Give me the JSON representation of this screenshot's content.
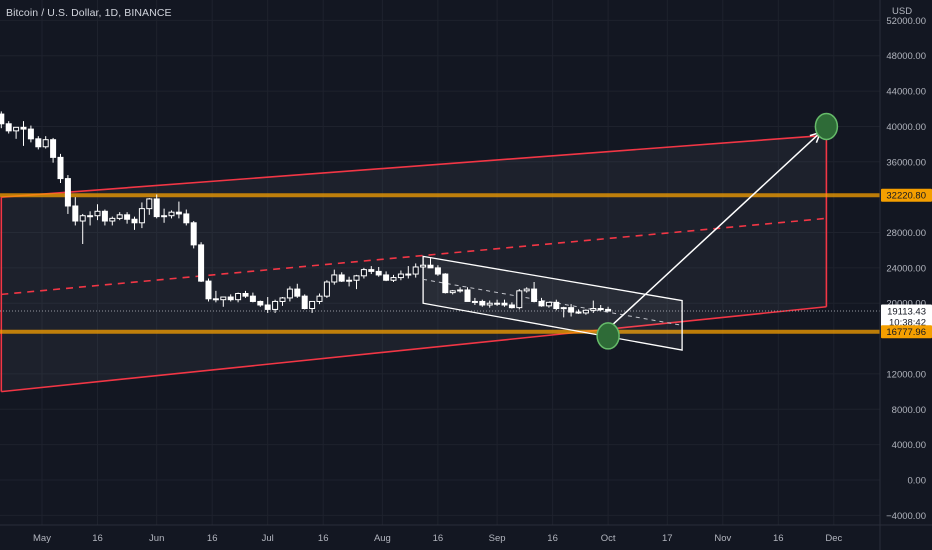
{
  "header": {
    "symbol_title": "Bitcoin / U.S. Dollar, 1D, BINANCE",
    "currency": "USD"
  },
  "chart_data": {
    "type": "line",
    "title": "Bitcoin / U.S. Dollar, 1D, BINANCE",
    "xlabel": "",
    "ylabel": "",
    "ylim": [
      -4000,
      52000
    ],
    "grid": true,
    "y_tick_labels": [
      "52000.00",
      "48000.00",
      "44000.00",
      "40000.00",
      "36000.00",
      "28000.00",
      "24000.00",
      "20000.00",
      "12000.00",
      "8000.00",
      "4000.00",
      "0.00",
      "−4000.00"
    ],
    "y_tick_values": [
      52000,
      48000,
      44000,
      40000,
      36000,
      28000,
      24000,
      20000,
      12000,
      8000,
      4000,
      0,
      -4000
    ],
    "x_tick_labels": [
      "May",
      "16",
      "Jun",
      "16",
      "Jul",
      "16",
      "Aug",
      "16",
      "Sep",
      "16",
      "Oct",
      "17",
      "Nov",
      "16",
      "Dec"
    ],
    "x_tick_dates": [
      "2022-05-01",
      "2022-05-16",
      "2022-06-01",
      "2022-06-16",
      "2022-07-01",
      "2022-07-16",
      "2022-08-01",
      "2022-08-16",
      "2022-09-01",
      "2022-09-16",
      "2022-10-01",
      "2022-10-17",
      "2022-11-01",
      "2022-11-16",
      "2022-12-01"
    ],
    "series": [
      {
        "type": "candlestick",
        "dates": [
          "2022-04-04",
          "2022-04-06",
          "2022-04-08",
          "2022-04-10",
          "2022-04-12",
          "2022-04-14",
          "2022-04-16",
          "2022-04-18",
          "2022-04-20",
          "2022-04-22",
          "2022-04-24",
          "2022-04-26",
          "2022-04-28",
          "2022-04-30",
          "2022-05-02",
          "2022-05-04",
          "2022-05-06",
          "2022-05-08",
          "2022-05-10",
          "2022-05-12",
          "2022-05-14",
          "2022-05-16",
          "2022-05-18",
          "2022-05-20",
          "2022-05-22",
          "2022-05-24",
          "2022-05-26",
          "2022-05-28",
          "2022-05-30",
          "2022-06-01",
          "2022-06-03",
          "2022-06-05",
          "2022-06-07",
          "2022-06-09",
          "2022-06-11",
          "2022-06-13",
          "2022-06-15",
          "2022-06-17",
          "2022-06-19",
          "2022-06-21",
          "2022-06-23",
          "2022-06-25",
          "2022-06-27",
          "2022-06-29",
          "2022-07-01",
          "2022-07-03",
          "2022-07-05",
          "2022-07-07",
          "2022-07-09",
          "2022-07-11",
          "2022-07-13",
          "2022-07-15",
          "2022-07-17",
          "2022-07-19",
          "2022-07-21",
          "2022-07-23",
          "2022-07-25",
          "2022-07-27",
          "2022-07-29",
          "2022-07-31",
          "2022-08-02",
          "2022-08-04",
          "2022-08-06",
          "2022-08-08",
          "2022-08-10",
          "2022-08-12",
          "2022-08-14",
          "2022-08-16",
          "2022-08-18",
          "2022-08-20",
          "2022-08-22",
          "2022-08-24",
          "2022-08-26",
          "2022-08-28",
          "2022-08-30",
          "2022-09-01",
          "2022-09-03",
          "2022-09-05",
          "2022-09-07",
          "2022-09-09",
          "2022-09-11",
          "2022-09-13",
          "2022-09-15",
          "2022-09-17",
          "2022-09-19",
          "2022-09-21",
          "2022-09-23",
          "2022-09-25",
          "2022-09-27",
          "2022-09-29",
          "2022-10-01"
        ],
        "open": [
          46500,
          45200,
          43400,
          42600,
          40200,
          41300,
          40500,
          40600,
          41400,
          40300,
          39500,
          39900,
          39700,
          38600,
          37700,
          38500,
          36500,
          34100,
          31000,
          29300,
          29900,
          29900,
          30400,
          29300,
          29600,
          30000,
          29500,
          29100,
          30700,
          31800,
          29800,
          29900,
          30300,
          30100,
          29100,
          26600,
          22500,
          20500,
          20400,
          20700,
          20400,
          21100,
          20800,
          20200,
          19800,
          19300,
          20200,
          20600,
          21600,
          20800,
          19400,
          20200,
          20800,
          22400,
          23200,
          22500,
          22600,
          23100,
          23800,
          23600,
          23200,
          22600,
          22900,
          23300,
          23300,
          24100,
          24300,
          24000,
          23300,
          21200,
          21400,
          21500,
          20200,
          20200,
          19800,
          20000,
          20000,
          19800,
          19500,
          21400,
          21600,
          20200,
          19700,
          20100,
          19400,
          19500,
          19000,
          18900,
          19200,
          19400,
          19300
        ],
        "high": [
          46900,
          45600,
          43700,
          42900,
          41500,
          41800,
          41100,
          41400,
          41700,
          40600,
          39900,
          40600,
          40100,
          38900,
          38900,
          38700,
          36900,
          34500,
          32000,
          30100,
          30400,
          31200,
          30600,
          29800,
          30300,
          30300,
          29800,
          31400,
          31900,
          32300,
          30700,
          30500,
          31500,
          30600,
          29300,
          26900,
          22800,
          21400,
          20700,
          21000,
          21200,
          21400,
          21200,
          20300,
          20700,
          20400,
          20700,
          21900,
          22200,
          21000,
          20200,
          21100,
          22600,
          23800,
          23500,
          23000,
          23200,
          24000,
          24200,
          24100,
          23600,
          23200,
          23700,
          24200,
          24500,
          24800,
          25100,
          24300,
          23400,
          21500,
          21800,
          21800,
          20600,
          20400,
          20300,
          20400,
          20400,
          20100,
          21600,
          21800,
          22400,
          20600,
          20100,
          20400,
          19600,
          19900,
          19300,
          19300,
          20300,
          19800,
          19600
        ],
        "low": [
          44800,
          42800,
          42100,
          39800,
          39900,
          40100,
          39600,
          40100,
          39800,
          39200,
          38600,
          37800,
          38200,
          37400,
          37500,
          35900,
          33600,
          30100,
          28800,
          26700,
          28800,
          29400,
          28800,
          28800,
          29400,
          29000,
          28300,
          28500,
          30000,
          29600,
          29100,
          29600,
          29600,
          28800,
          26200,
          22400,
          20200,
          20100,
          19600,
          20200,
          20100,
          20600,
          20100,
          19600,
          18900,
          18900,
          19700,
          20200,
          20600,
          19300,
          18900,
          19900,
          20600,
          22100,
          22400,
          21900,
          21600,
          22800,
          23300,
          23000,
          22500,
          22400,
          22600,
          22800,
          22900,
          23800,
          24000,
          23100,
          21100,
          21000,
          21200,
          20200,
          19800,
          19600,
          19500,
          19700,
          19600,
          19400,
          19300,
          21200,
          20100,
          19600,
          19500,
          19200,
          18400,
          18500,
          18800,
          18700,
          18900,
          19100,
          19100
        ],
        "close": [
          45200,
          43400,
          42600,
          40200,
          41300,
          40500,
          40600,
          41400,
          40300,
          39500,
          39900,
          39700,
          38600,
          37700,
          38500,
          36500,
          34100,
          31000,
          29300,
          29900,
          29900,
          30400,
          29300,
          29600,
          30000,
          29500,
          29100,
          30700,
          31800,
          29800,
          29900,
          30300,
          30100,
          29100,
          26600,
          22500,
          20500,
          20400,
          20700,
          20400,
          21100,
          20800,
          20200,
          19800,
          19300,
          20200,
          20600,
          21600,
          20800,
          19400,
          20200,
          20800,
          22400,
          23200,
          22500,
          22600,
          23100,
          23800,
          23600,
          23200,
          22600,
          22900,
          23300,
          23300,
          24100,
          24300,
          24000,
          23300,
          21200,
          21400,
          21500,
          20200,
          20200,
          19800,
          20000,
          20000,
          19800,
          19500,
          21400,
          21600,
          20200,
          19700,
          20100,
          19400,
          19500,
          19000,
          18900,
          19200,
          19400,
          19300,
          19113
        ]
      }
    ],
    "price_labels": [
      {
        "value": 32220.8,
        "text": "32220.80",
        "color": "#f59f00"
      },
      {
        "value": 19113.43,
        "text": "19113.43",
        "countdown": "10:38:42",
        "color": "#ffffff"
      },
      {
        "value": 16777.96,
        "text": "16777.96",
        "color": "#f59f00"
      }
    ],
    "drawings": {
      "horizontal_levels": [
        32220.8,
        16777.96
      ],
      "ascending_channel": {
        "start_date": "2022-04-20",
        "end_date": "2022-11-29",
        "upper": [
          32000,
          39000
        ],
        "middle": [
          21000,
          29600
        ],
        "lower": [
          10000,
          19600
        ],
        "color": "#f23645"
      },
      "descending_channel": {
        "start_date": "2022-08-12",
        "end_date": "2022-10-21",
        "upper": [
          25300,
          20300
        ],
        "lower": [
          20000,
          14700
        ],
        "midline": [
          22700,
          17500
        ],
        "color": "#ffffff"
      },
      "projection_arrow": {
        "from_date": "2022-10-01",
        "from_value": 17100,
        "to_date": "2022-11-29",
        "to_value": 40000
      },
      "circles": [
        {
          "date": "2022-10-01",
          "value": 16300
        },
        {
          "date": "2022-11-29",
          "value": 40000
        }
      ]
    },
    "colors": {
      "background": "#131722",
      "up": "#ffffff",
      "down": "#ffffff",
      "level": "#f59f00",
      "channel": "#f23645",
      "circle_fill": "#2e6b37",
      "circle_stroke": "#66bb6a",
      "arrow": "#ffffff"
    }
  }
}
